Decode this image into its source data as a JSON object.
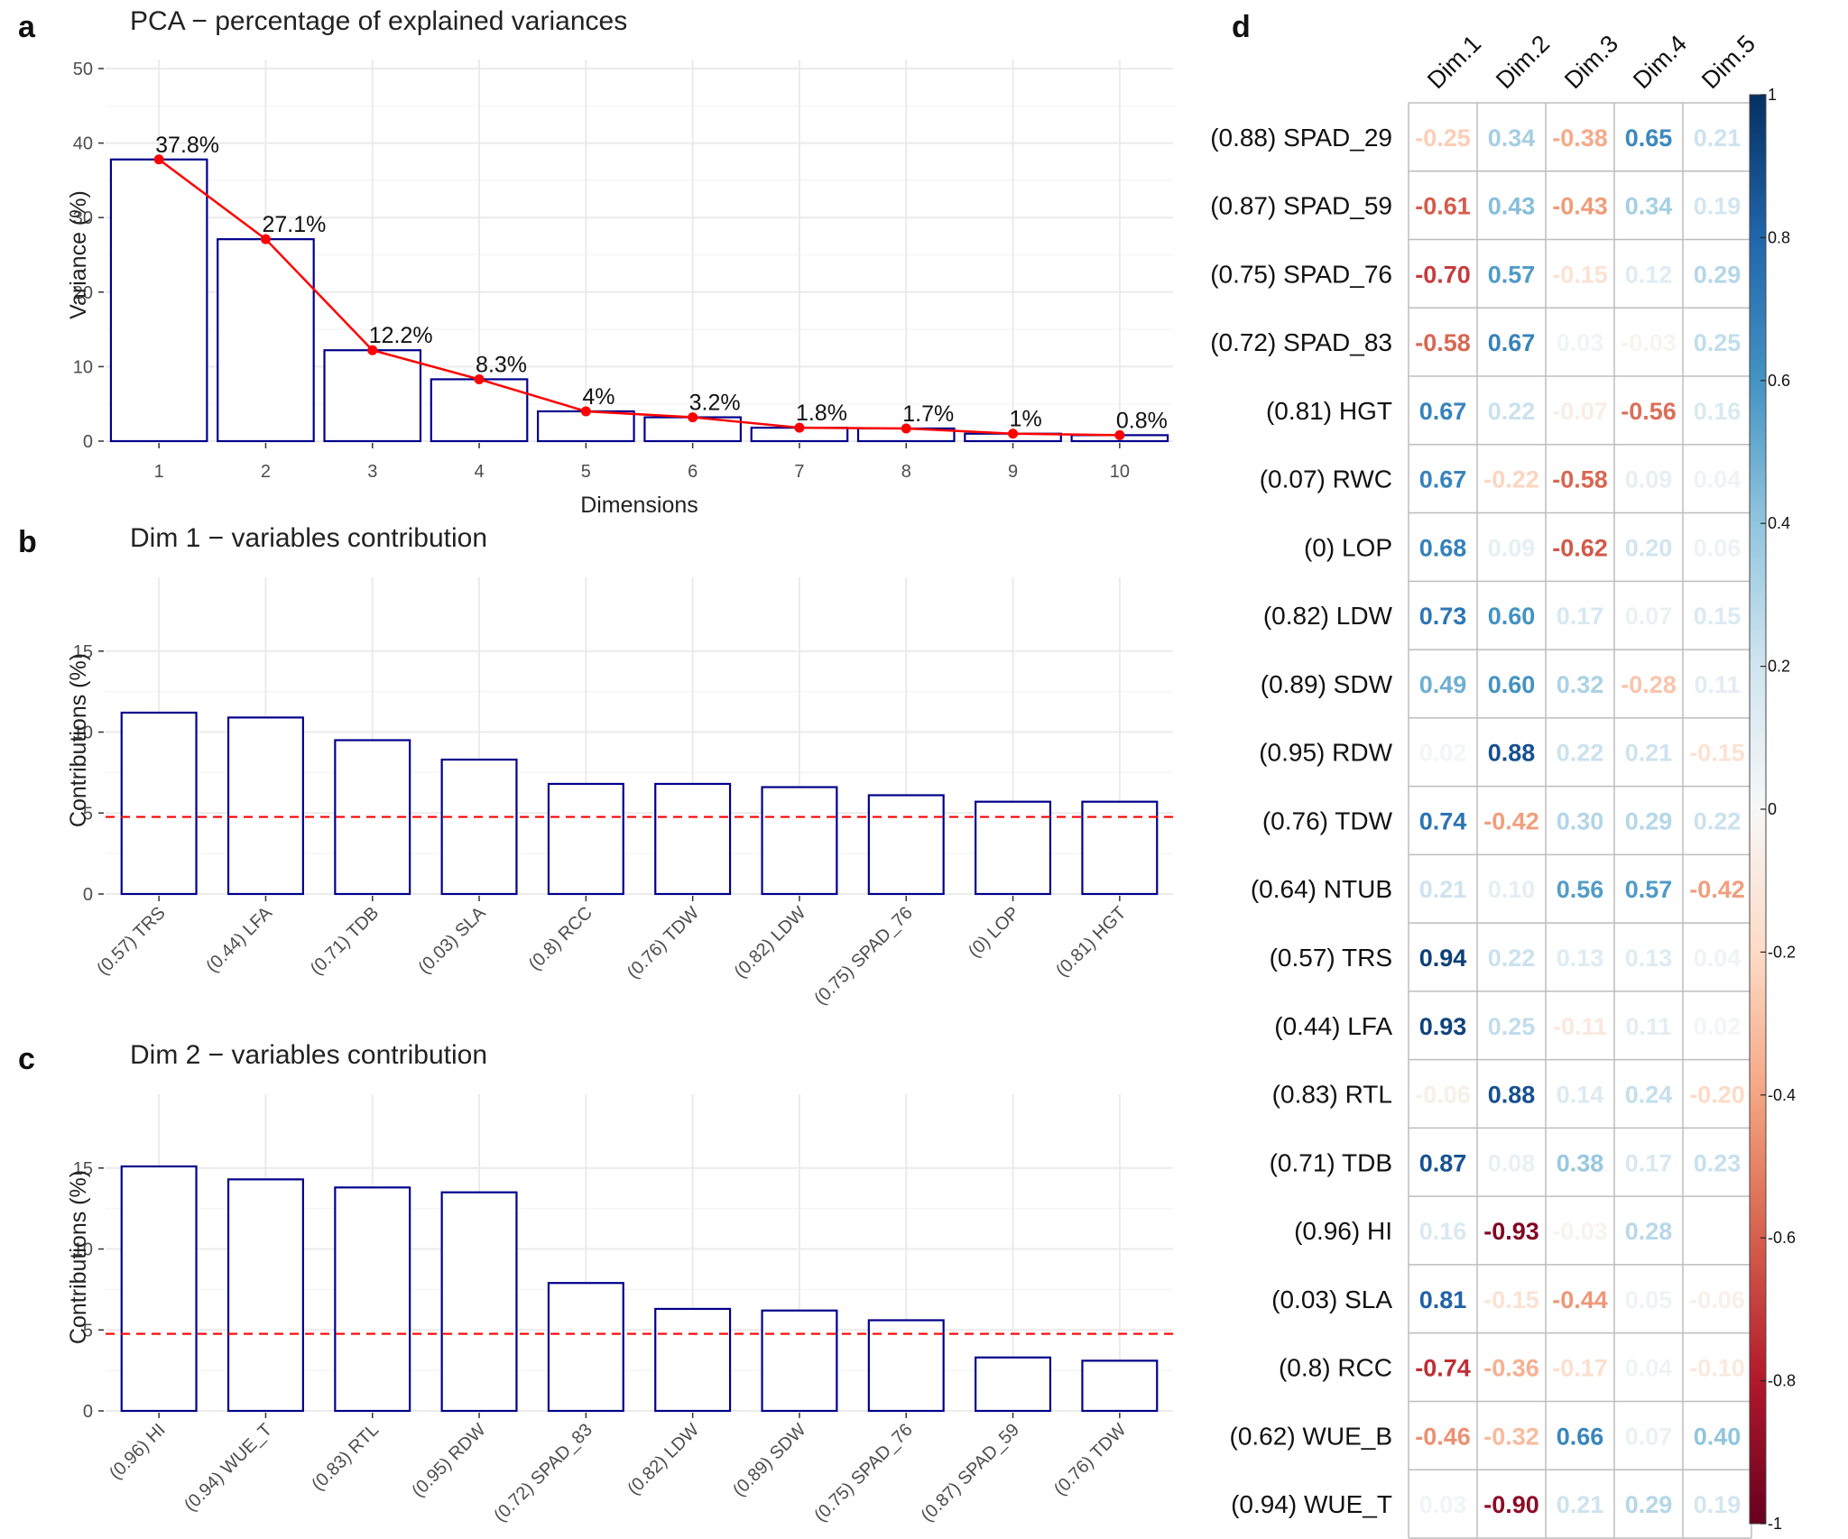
{
  "chart_data": [
    {
      "id": "a",
      "panel_label": "a",
      "type": "bar",
      "title": "PCA − percentage of explained variances",
      "xlabel": "Dimensions",
      "ylabel": "Variance (%)",
      "ylim": [
        0,
        50
      ],
      "yticks": [
        "0",
        "10",
        "20",
        "30",
        "40",
        "50"
      ],
      "categories": [
        "1",
        "2",
        "3",
        "4",
        "5",
        "6",
        "7",
        "8",
        "9",
        "10"
      ],
      "values": [
        37.8,
        27.1,
        12.2,
        8.3,
        4.0,
        3.2,
        1.8,
        1.7,
        1.0,
        0.8
      ],
      "data_labels": [
        "37.8%",
        "27.1%",
        "12.2%",
        "8.3%",
        "4%",
        "3.2%",
        "1.8%",
        "1.7%",
        "1%",
        "0.8%"
      ],
      "overlay_line": true,
      "bar_outline_color": "#00008b",
      "line_color": "#ff0000",
      "grid": true
    },
    {
      "id": "b",
      "panel_label": "b",
      "type": "bar",
      "title": "Dim 1 − variables contribution",
      "xlabel": "",
      "ylabel": "Contributions (%)",
      "ylim": [
        0,
        19
      ],
      "yticks": [
        "0",
        "5",
        "10",
        "15"
      ],
      "categories": [
        "(0.57) TRS",
        "(0.44) LFA",
        "(0.71) TDB",
        "(0.03) SLA",
        "(0.8) RCC",
        "(0.76) TDW",
        "(0.82) LDW",
        "(0.75) SPAD_76",
        "(0) LOP",
        "(0.81) HGT"
      ],
      "values": [
        11.2,
        10.9,
        9.5,
        8.3,
        6.8,
        6.8,
        6.6,
        6.1,
        5.7,
        5.7
      ],
      "reference_line": 4.76,
      "bar_outline_color": "#00008b",
      "reference_color": "#ff0000",
      "grid": true
    },
    {
      "id": "c",
      "panel_label": "c",
      "type": "bar",
      "title": "Dim 2 − variables contribution",
      "xlabel": "",
      "ylabel": "Contributions (%)",
      "ylim": [
        0,
        19
      ],
      "yticks": [
        "0",
        "5",
        "10",
        "15"
      ],
      "categories": [
        "(0.96) HI",
        "(0.94) WUE_T",
        "(0.83) RTL",
        "(0.95) RDW",
        "(0.72) SPAD_83",
        "(0.82) LDW",
        "(0.89) SDW",
        "(0.75) SPAD_76",
        "(0.87) SPAD_59",
        "(0.76) TDW"
      ],
      "values": [
        15.1,
        14.3,
        13.8,
        13.5,
        7.9,
        6.3,
        6.2,
        5.6,
        3.3,
        3.1
      ],
      "reference_line": 4.76,
      "bar_outline_color": "#00008b",
      "reference_color": "#ff0000",
      "grid": true
    },
    {
      "id": "d",
      "panel_label": "d",
      "type": "heatmap",
      "columns": [
        "Dim.1",
        "Dim.2",
        "Dim.3",
        "Dim.4",
        "Dim.5"
      ],
      "rows": [
        "(0.88) SPAD_29",
        "(0.87) SPAD_59",
        "(0.75) SPAD_76",
        "(0.72) SPAD_83",
        "(0.81) HGT",
        "(0.07) RWC",
        "(0) LOP",
        "(0.82) LDW",
        "(0.89) SDW",
        "(0.95) RDW",
        "(0.76) TDW",
        "(0.64) NTUB",
        "(0.57) TRS",
        "(0.44) LFA",
        "(0.83) RTL",
        "(0.71) TDB",
        "(0.96) HI",
        "(0.03) SLA",
        "(0.8) RCC",
        "(0.62) WUE_B",
        "(0.94) WUE_T"
      ],
      "values": [
        [
          -0.25,
          0.34,
          -0.38,
          0.65,
          0.21
        ],
        [
          -0.61,
          0.43,
          -0.43,
          0.34,
          0.19
        ],
        [
          -0.7,
          0.57,
          -0.15,
          0.12,
          0.29
        ],
        [
          -0.58,
          0.67,
          0.03,
          -0.03,
          0.25
        ],
        [
          0.67,
          0.22,
          -0.07,
          -0.56,
          0.16
        ],
        [
          0.67,
          -0.22,
          -0.58,
          0.09,
          0.04
        ],
        [
          0.68,
          0.09,
          -0.62,
          0.2,
          0.06
        ],
        [
          0.73,
          0.6,
          0.17,
          0.07,
          0.15
        ],
        [
          0.49,
          0.6,
          0.32,
          -0.28,
          0.11
        ],
        [
          0.02,
          0.88,
          0.22,
          0.21,
          -0.15
        ],
        [
          0.74,
          -0.42,
          0.3,
          0.29,
          0.22
        ],
        [
          0.21,
          0.1,
          0.56,
          0.57,
          -0.42
        ],
        [
          0.94,
          0.22,
          0.13,
          0.13,
          0.04
        ],
        [
          0.93,
          0.25,
          -0.11,
          0.11,
          0.02
        ],
        [
          -0.06,
          0.88,
          0.14,
          0.24,
          -0.2
        ],
        [
          0.87,
          0.08,
          0.38,
          0.17,
          0.23
        ],
        [
          0.16,
          -0.93,
          -0.03,
          0.28,
          null
        ],
        [
          0.81,
          -0.15,
          -0.44,
          0.05,
          -0.06
        ],
        [
          -0.74,
          -0.36,
          -0.17,
          0.04,
          -0.1
        ],
        [
          -0.46,
          -0.32,
          0.66,
          0.07,
          0.4
        ],
        [
          0.03,
          -0.9,
          0.21,
          0.29,
          0.19
        ]
      ],
      "value_labels": [
        [
          "-0.25",
          "0.34",
          "-0.38",
          "0.65",
          "0.21"
        ],
        [
          "-0.61",
          "0.43",
          "-0.43",
          "0.34",
          "0.19"
        ],
        [
          "-0.70",
          "0.57",
          "-0.15",
          "0.12",
          "0.29"
        ],
        [
          "-0.58",
          "0.67",
          "0.03",
          "-0.03",
          "0.25"
        ],
        [
          "0.67",
          "0.22",
          "-0.07",
          "-0.56",
          "0.16"
        ],
        [
          "0.67",
          "-0.22",
          "-0.58",
          "0.09",
          "0.04"
        ],
        [
          "0.68",
          "0.09",
          "-0.62",
          "0.20",
          "0.06"
        ],
        [
          "0.73",
          "0.60",
          "0.17",
          "0.07",
          "0.15"
        ],
        [
          "0.49",
          "0.60",
          "0.32",
          "-0.28",
          "0.11"
        ],
        [
          "0.02",
          "0.88",
          "0.22",
          "0.21",
          "-0.15"
        ],
        [
          "0.74",
          "-0.42",
          "0.30",
          "0.29",
          "0.22"
        ],
        [
          "0.21",
          "0.10",
          "0.56",
          "0.57",
          "-0.42"
        ],
        [
          "0.94",
          "0.22",
          "0.13",
          "0.13",
          "0.04"
        ],
        [
          "0.93",
          "0.25",
          "-0.11",
          "0.11",
          "0.02"
        ],
        [
          "-0.06",
          "0.88",
          "0.14",
          "0.24",
          "-0.20"
        ],
        [
          "0.87",
          "0.08",
          "0.38",
          "0.17",
          "0.23"
        ],
        [
          "0.16",
          "-0.93",
          "-0.03",
          "0.28",
          ""
        ],
        [
          "0.81",
          "-0.15",
          "-0.44",
          "0.05",
          "-0.06"
        ],
        [
          "-0.74",
          "-0.36",
          "-0.17",
          "0.04",
          "-0.10"
        ],
        [
          "-0.46",
          "-0.32",
          "0.66",
          "0.07",
          "0.40"
        ],
        [
          "0.03",
          "-0.90",
          "0.21",
          "0.29",
          "0.19"
        ]
      ],
      "colorbar_ticks": [
        "1",
        "0.8",
        "0.6",
        "0.4",
        "0.2",
        "0",
        "-0.2",
        "-0.4",
        "-0.6",
        "-0.8",
        "-1"
      ],
      "colorbar_values": [
        1,
        0.8,
        0.6,
        0.4,
        0.2,
        0,
        -0.2,
        -0.4,
        -0.6,
        -0.8,
        -1
      ],
      "color_scale": "RdBu",
      "range": [
        -1,
        1
      ]
    }
  ]
}
